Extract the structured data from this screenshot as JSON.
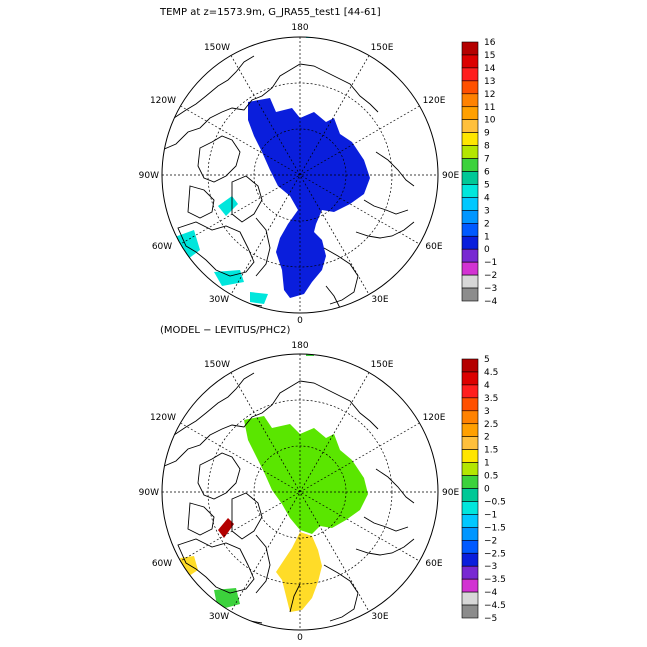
{
  "panel_top": {
    "title": "TEMP at z=1573.9m, G_JRA55_test1 [44-61]",
    "lon_labels": {
      "n180": "180",
      "w150": "150W",
      "e150": "150E",
      "w120": "120W",
      "e120": "120E",
      "w90": "90W",
      "e90": "90E",
      "w60": "60W",
      "e60": "60E",
      "w30": "30W",
      "e30": "30E",
      "s0": "0"
    },
    "colorbar": {
      "labels": [
        "16",
        "15",
        "14",
        "13",
        "12",
        "11",
        "10",
        "9",
        "8",
        "7",
        "6",
        "5",
        "4",
        "3",
        "2",
        "1",
        "0",
        "−1",
        "−2",
        "−3",
        "−4"
      ],
      "colors": [
        "#b40000",
        "#dc0000",
        "#ff1e1e",
        "#ff5000",
        "#ff8200",
        "#ffa000",
        "#ffc03c",
        "#ffe600",
        "#b4e600",
        "#3cd23c",
        "#00c896",
        "#00e6dc",
        "#00c8ff",
        "#0096ff",
        "#005aff",
        "#0a1edc",
        "#7828d2",
        "#d232d2",
        "#d7d7d7",
        "#8c8c8c"
      ]
    },
    "field_color": "#0a1edc",
    "patch_color": "#00e6dc"
  },
  "panel_bottom": {
    "title": "(MODEL − LEVITUS/PHC2)",
    "lon_labels": {
      "n180": "180",
      "w150": "150W",
      "e150": "150E",
      "w120": "120W",
      "e120": "120E",
      "w90": "90W",
      "e90": "90E",
      "w60": "60W",
      "e60": "60E",
      "w30": "30W",
      "e30": "30E",
      "s0": "0"
    },
    "colorbar": {
      "labels": [
        "5",
        "4.5",
        "4",
        "3.5",
        "3",
        "2.5",
        "2",
        "1.5",
        "1",
        "0.5",
        "0",
        "−0.5",
        "−1",
        "−1.5",
        "−2",
        "−2.5",
        "−3",
        "−3.5",
        "−4",
        "−4.5",
        "−5"
      ],
      "colors": [
        "#b40000",
        "#dc0000",
        "#ff1e1e",
        "#ff5000",
        "#ff8200",
        "#ffa000",
        "#ffc03c",
        "#ffe600",
        "#b4e600",
        "#3cd23c",
        "#00c896",
        "#00e6dc",
        "#00c8ff",
        "#0096ff",
        "#005aff",
        "#0a1edc",
        "#7828d2",
        "#d232d2",
        "#d7d7d7",
        "#8c8c8c"
      ]
    },
    "field_color": "#5ae600",
    "warm_color": "#ffdc28",
    "hot_color": "#b40000",
    "patch_color": "#3cd23c"
  }
}
